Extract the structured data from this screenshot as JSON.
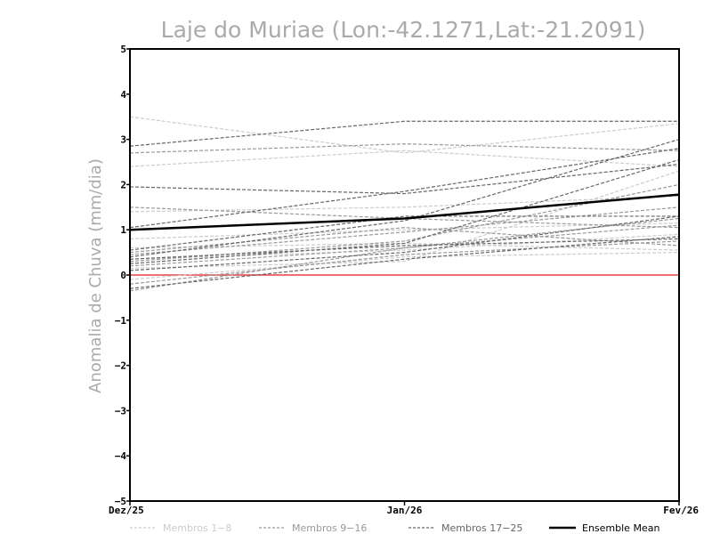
{
  "chart_data": {
    "type": "line",
    "title": "Laje do Muriae (Lon:-42.1271,Lat:-21.2091)",
    "xlabel": "",
    "ylabel": "Anomalia de Chuva (mm/dia)",
    "categories": [
      "Dez/25",
      "Jan/26",
      "Fev/26"
    ],
    "ylim": [
      -5,
      5
    ],
    "yticks": [
      "-5",
      "-4",
      "-3",
      "-2",
      "-1",
      "0",
      "1",
      "2",
      "3",
      "4",
      "5"
    ],
    "grid": false,
    "legend_position": "bottom",
    "zero_line_color": "#e84040",
    "series": [
      {
        "group": "Membros 1-8",
        "color": "#cccccc",
        "values": [
          3.5,
          2.7,
          3.35
        ]
      },
      {
        "group": "Membros 1-8",
        "color": "#cccccc",
        "values": [
          2.4,
          2.75,
          2.4
        ]
      },
      {
        "group": "Membros 1-8",
        "color": "#cccccc",
        "values": [
          1.4,
          1.5,
          1.75
        ]
      },
      {
        "group": "Membros 1-8",
        "color": "#cccccc",
        "values": [
          0.8,
          1.0,
          1.15
        ]
      },
      {
        "group": "Membros 1-8",
        "color": "#cccccc",
        "values": [
          0.6,
          0.7,
          0.55
        ]
      },
      {
        "group": "Membros 1-8",
        "color": "#cccccc",
        "values": [
          0.35,
          0.55,
          0.9
        ]
      },
      {
        "group": "Membros 1-8",
        "color": "#cccccc",
        "values": [
          -0.1,
          0.4,
          0.5
        ]
      },
      {
        "group": "Membros 1-8",
        "color": "#cccccc",
        "values": [
          0.15,
          0.3,
          2.3
        ]
      },
      {
        "group": "Membros 9-16",
        "color": "#999999",
        "values": [
          2.7,
          2.9,
          2.75
        ]
      },
      {
        "group": "Membros 9-16",
        "color": "#999999",
        "values": [
          1.5,
          1.25,
          1.05
        ]
      },
      {
        "group": "Membros 9-16",
        "color": "#999999",
        "values": [
          0.45,
          0.95,
          1.5
        ]
      },
      {
        "group": "Membros 9-16",
        "color": "#999999",
        "values": [
          0.3,
          0.75,
          2.0
        ]
      },
      {
        "group": "Membros 9-16",
        "color": "#999999",
        "values": [
          0.2,
          0.6,
          1.1
        ]
      },
      {
        "group": "Membros 9-16",
        "color": "#999999",
        "values": [
          -0.2,
          0.45,
          0.75
        ]
      },
      {
        "group": "Membros 9-16",
        "color": "#999999",
        "values": [
          -0.35,
          0.6,
          1.25
        ]
      },
      {
        "group": "Membros 9-16",
        "color": "#999999",
        "values": [
          0.5,
          1.05,
          0.65
        ]
      },
      {
        "group": "Membros 17-25",
        "color": "#666666",
        "values": [
          2.85,
          3.4,
          3.4
        ]
      },
      {
        "group": "Membros 17-25",
        "color": "#666666",
        "values": [
          1.95,
          1.8,
          2.45
        ]
      },
      {
        "group": "Membros 17-25",
        "color": "#666666",
        "values": [
          1.05,
          1.85,
          2.8
        ]
      },
      {
        "group": "Membros 17-25",
        "color": "#666666",
        "values": [
          0.4,
          1.2,
          3.0
        ]
      },
      {
        "group": "Membros 17-25",
        "color": "#666666",
        "values": [
          0.25,
          0.7,
          2.55
        ]
      },
      {
        "group": "Membros 17-25",
        "color": "#666666",
        "values": [
          0.1,
          0.5,
          1.3
        ]
      },
      {
        "group": "Membros 17-25",
        "color": "#666666",
        "values": [
          0.35,
          0.65,
          0.8
        ]
      },
      {
        "group": "Membros 17-25",
        "color": "#666666",
        "values": [
          -0.3,
          0.35,
          0.85
        ]
      },
      {
        "group": "Membros 17-25",
        "color": "#666666",
        "values": [
          0.55,
          1.3,
          1.3
        ]
      }
    ],
    "ensemble_mean": {
      "name": "Ensemble Mean",
      "color": "#000000",
      "values": [
        1.0,
        1.25,
        1.78
      ]
    },
    "legend": [
      {
        "label": "Membros 1-8",
        "color": "#cccccc",
        "style": "dashed"
      },
      {
        "label": "Membros 9-16",
        "color": "#999999",
        "style": "dashed"
      },
      {
        "label": "Membros 17-25",
        "color": "#666666",
        "style": "dashed"
      },
      {
        "label": "Ensemble Mean",
        "color": "#000000",
        "style": "solid"
      }
    ]
  }
}
